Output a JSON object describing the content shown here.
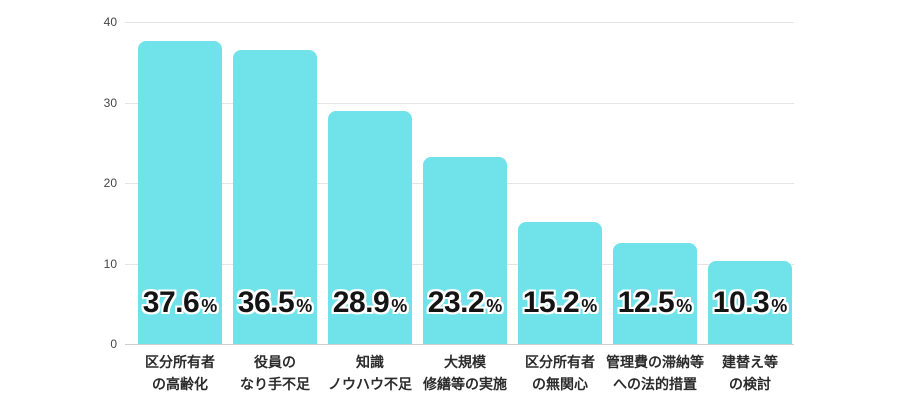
{
  "chart_data": {
    "type": "bar",
    "title": "",
    "unit": "%",
    "categories": [
      "区分所有者\nの高齢化",
      "役員の\nなり手不足",
      "知識\nノウハウ不足",
      "大規模\n修繕等の実施",
      "区分所有者\nの無関心",
      "管理費の滞納等\nへの法的措置",
      "建替え等\nの検討"
    ],
    "values": [
      37.6,
      36.5,
      28.9,
      23.2,
      15.2,
      12.5,
      10.3
    ],
    "y_ticks": [
      "40",
      "30",
      "20",
      "10",
      "0"
    ],
    "ylim": [
      0,
      40
    ],
    "grid": true,
    "legend": false,
    "bar_color": "#6FE3E9"
  }
}
